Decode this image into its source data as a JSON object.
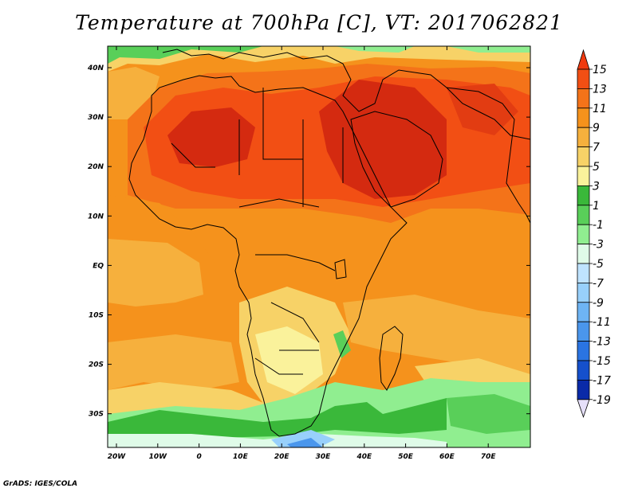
{
  "map": {
    "title": "Temperature at 700hPa [C], VT: 2017062821",
    "footer": "GrADS: IGES/COLA",
    "lat_labels": [
      "40N",
      "30N",
      "20N",
      "10N",
      "EQ",
      "10S",
      "20S",
      "30S"
    ],
    "lon_labels": [
      "20W",
      "10W",
      "0",
      "10E",
      "20E",
      "30E",
      "40E",
      "50E",
      "60E",
      "70E"
    ]
  },
  "colorbar": {
    "labels": [
      "15",
      "13",
      "11",
      "9",
      "7",
      "5",
      "3",
      "1",
      "-1",
      "-3",
      "-5",
      "-7",
      "-9",
      "-11",
      "-13",
      "-15",
      "-17",
      "-19"
    ],
    "colors": [
      "#f03a0f",
      "#f24f14",
      "#f47319",
      "#f5921c",
      "#f6b03d",
      "#f7d267",
      "#faf29b",
      "#3ab83a",
      "#59cf59",
      "#90ee90",
      "#dffbe8",
      "#bfe3ff",
      "#98d0fb",
      "#6eb4f4",
      "#4a96ec",
      "#2a74e2",
      "#1550cc",
      "#0a2aa8",
      "#000a6e"
    ]
  },
  "colors": {
    "hot": "#d42a10",
    "warm": "#ef5a18",
    "orange": "#f5921c",
    "light_orange": "#f6b03d",
    "yellow": "#f7d267",
    "pale_yellow": "#faf29b",
    "green": "#3ab83a",
    "light_green": "#90ee90",
    "blue": "#6eb4f4"
  }
}
